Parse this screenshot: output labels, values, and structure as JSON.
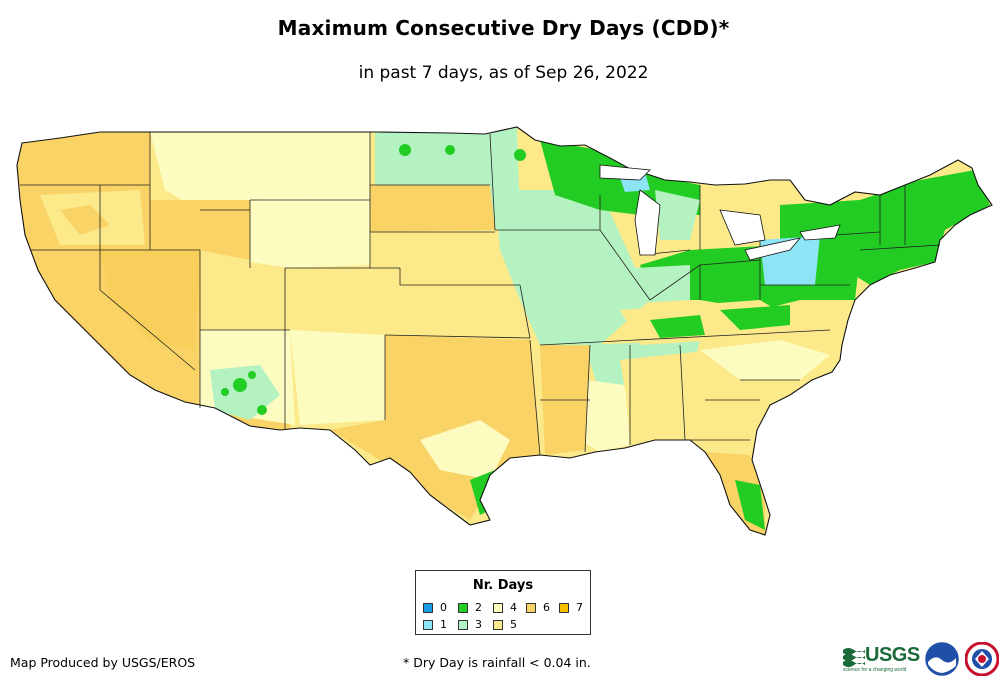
{
  "header": {
    "title": "Maximum Consecutive Dry Days (CDD)*",
    "subtitle": "in past 7 days, as of Sep 26, 2022"
  },
  "legend": {
    "title": "Nr. Days",
    "items": [
      {
        "label": "0",
        "color": "#1b9ce6"
      },
      {
        "label": "1",
        "color": "#8de4f5"
      },
      {
        "label": "2",
        "color": "#22cc22"
      },
      {
        "label": "3",
        "color": "#b5f2c2"
      },
      {
        "label": "4",
        "color": "#fdfcc0"
      },
      {
        "label": "5",
        "color": "#fce98a"
      },
      {
        "label": "6",
        "color": "#f9d365"
      },
      {
        "label": "7",
        "color": "#f7bd00"
      }
    ]
  },
  "footer": {
    "credit": "Map Produced by USGS/EROS",
    "note": "* Dry Day is rainfall < 0.04 in."
  },
  "logos": {
    "usgs": "USGS",
    "usgs_tagline": "science for a changing world",
    "noaa_icon": "noaa-logo-icon",
    "nws_icon": "nws-logo-icon"
  }
}
